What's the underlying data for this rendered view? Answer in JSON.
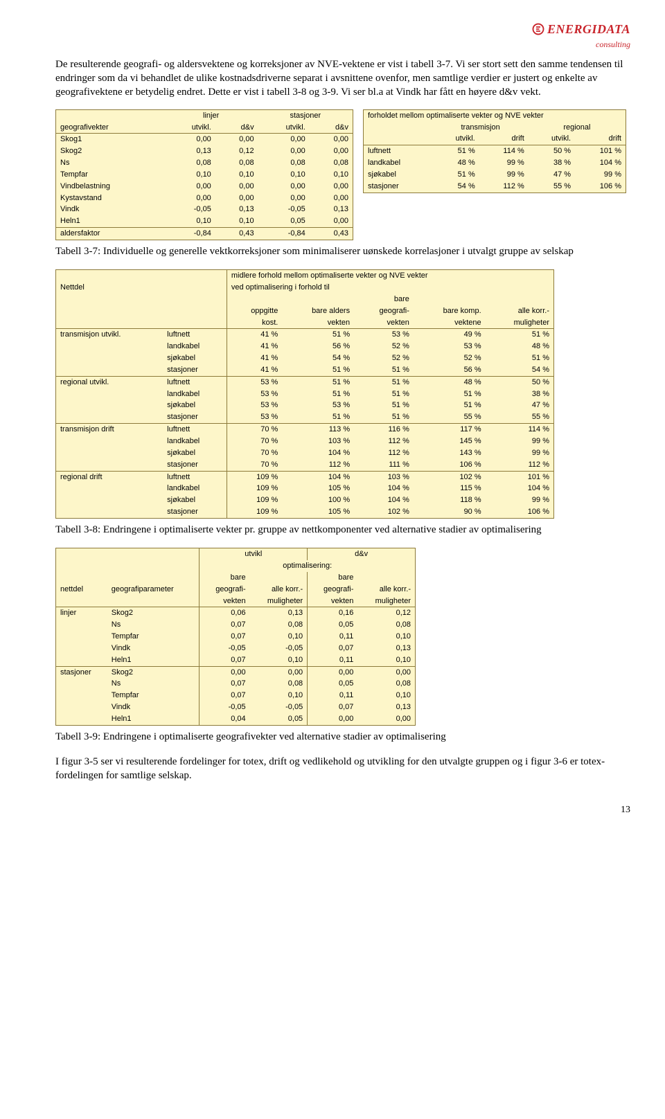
{
  "logo": {
    "name": "ENERGIDATA",
    "sub": "consulting"
  },
  "para1": "De resulterende geografi- og aldersvektene og korreksjoner av NVE-vektene er vist i tabell 3-7. Vi ser stort sett den samme tendensen til endringer som da vi behandlet de ulike kostnadsdriverne separat i avsnittene ovenfor, men samtlige verdier er justert og enkelte av geografivektene er betydelig endret. Dette er vist i tabell 3-8 og 3-9. Vi ser bl.a at Vindk har fått en høyere d&v vekt.",
  "caption37": "Tabell 3-7: Individuelle og generelle vektkorreksjoner som minimaliserer uønskede korrelasjoner i utvalgt gruppe av selskap",
  "caption38": "Tabell 3-8: Endringene i optimaliserte vekter pr. gruppe av nettkomponenter ved alternative stadier av optimalisering",
  "caption39": "Tabell 3-9: Endringene i optimaliserte geografivekter ved alternative stadier av optimalisering",
  "para2": "I figur 3-5 ser vi resulterende fordelinger for totex, drift og vedlikehold og utvikling for den utvalgte gruppen og i figur 3-6 er totex-fordelingen for samtlige selskap.",
  "pagenum": "13",
  "t37l": {
    "h_linjer": "linjer",
    "h_stasjoner": "stasjoner",
    "h_geo": "geografivekter",
    "h_utvikl": "utvikl.",
    "h_dv": "d&v",
    "rows": [
      [
        "Skog1",
        "0,00",
        "0,00",
        "0,00",
        "0,00"
      ],
      [
        "Skog2",
        "0,13",
        "0,12",
        "0,00",
        "0,00"
      ],
      [
        "Ns",
        "0,08",
        "0,08",
        "0,08",
        "0,08"
      ],
      [
        "Tempfar",
        "0,10",
        "0,10",
        "0,10",
        "0,10"
      ],
      [
        "Vindbelastning",
        "0,00",
        "0,00",
        "0,00",
        "0,00"
      ],
      [
        "Kystavstand",
        "0,00",
        "0,00",
        "0,00",
        "0,00"
      ],
      [
        "Vindk",
        "-0,05",
        "0,13",
        "-0,05",
        "0,13"
      ],
      [
        "Heln1",
        "0,10",
        "0,10",
        "0,05",
        "0,00"
      ]
    ],
    "alders_label": "aldersfaktor",
    "alders": [
      "-0,84",
      "0,43",
      "-0,84",
      "0,43"
    ]
  },
  "t37r": {
    "title": "forholdet mellom optimaliserte vekter og NVE vekter",
    "h_trans": "transmisjon",
    "h_reg": "regional",
    "h_utvikl": "utvikl.",
    "h_drift": "drift",
    "rows": [
      [
        "luftnett",
        "51 %",
        "114 %",
        "50 %",
        "101 %"
      ],
      [
        "landkabel",
        "48 %",
        "99 %",
        "38 %",
        "104 %"
      ],
      [
        "sjøkabel",
        "51 %",
        "99 %",
        "47 %",
        "99 %"
      ],
      [
        "stasjoner",
        "54 %",
        "112 %",
        "55 %",
        "106 %"
      ]
    ]
  },
  "t38": {
    "h_nettdel": "Nettdel",
    "h_mid1": "midlere forhold mellom optimaliserte vekter og NVE vekter",
    "h_mid2": "ved optimalisering i forhold til",
    "h_bare": "bare",
    "cols": [
      "oppgitte kost.",
      "bare alders vekten",
      "geografi- vekten",
      "bare komp. vektene",
      "alle korr.- muligheter"
    ],
    "col_top": [
      "oppgitte",
      "bare alders",
      "geografi-",
      "bare komp.",
      "alle korr.-"
    ],
    "col_bot": [
      "kost.",
      "vekten",
      "vekten",
      "vektene",
      "muligheter"
    ],
    "groups": [
      {
        "name": "transmisjon utvikl.",
        "rows": [
          [
            "luftnett",
            "41 %",
            "51 %",
            "53 %",
            "49 %",
            "51 %"
          ],
          [
            "landkabel",
            "41 %",
            "56 %",
            "52 %",
            "53 %",
            "48 %"
          ],
          [
            "sjøkabel",
            "41 %",
            "54 %",
            "52 %",
            "52 %",
            "51 %"
          ],
          [
            "stasjoner",
            "41 %",
            "51 %",
            "51 %",
            "56 %",
            "54 %"
          ]
        ]
      },
      {
        "name": "regional utvikl.",
        "rows": [
          [
            "luftnett",
            "53 %",
            "51 %",
            "51 %",
            "48 %",
            "50 %"
          ],
          [
            "landkabel",
            "53 %",
            "51 %",
            "51 %",
            "51 %",
            "38 %"
          ],
          [
            "sjøkabel",
            "53 %",
            "53 %",
            "51 %",
            "51 %",
            "47 %"
          ],
          [
            "stasjoner",
            "53 %",
            "51 %",
            "51 %",
            "55 %",
            "55 %"
          ]
        ]
      },
      {
        "name": "transmisjon drift",
        "rows": [
          [
            "luftnett",
            "70 %",
            "113 %",
            "116 %",
            "117 %",
            "114 %"
          ],
          [
            "landkabel",
            "70 %",
            "103 %",
            "112 %",
            "145 %",
            "99 %"
          ],
          [
            "sjøkabel",
            "70 %",
            "104 %",
            "112 %",
            "143 %",
            "99 %"
          ],
          [
            "stasjoner",
            "70 %",
            "112 %",
            "111 %",
            "106 %",
            "112 %"
          ]
        ]
      },
      {
        "name": "regional drift",
        "rows": [
          [
            "luftnett",
            "109 %",
            "104 %",
            "103 %",
            "102 %",
            "101 %"
          ],
          [
            "landkabel",
            "109 %",
            "105 %",
            "104 %",
            "115 %",
            "104 %"
          ],
          [
            "sjøkabel",
            "109 %",
            "100 %",
            "104 %",
            "118 %",
            "99 %"
          ],
          [
            "stasjoner",
            "109 %",
            "105 %",
            "102 %",
            "90 %",
            "106 %"
          ]
        ]
      }
    ]
  },
  "t39": {
    "h_utvikl": "utvikl",
    "h_dv": "d&v",
    "h_opt": "optimalisering:",
    "h_bare": "bare",
    "h_nettdel": "nettdel",
    "h_geoparam": "geografiparameter",
    "h_geo": "geografi-",
    "h_alle": "alle korr.-",
    "h_vekten": "vekten",
    "h_mul": "muligheter",
    "groups": [
      {
        "name": "linjer",
        "rows": [
          [
            "Skog2",
            "0,06",
            "0,13",
            "0,16",
            "0,12"
          ],
          [
            "Ns",
            "0,07",
            "0,08",
            "0,05",
            "0,08"
          ],
          [
            "Tempfar",
            "0,07",
            "0,10",
            "0,11",
            "0,10"
          ],
          [
            "Vindk",
            "-0,05",
            "-0,05",
            "0,07",
            "0,13"
          ],
          [
            "Heln1",
            "0,07",
            "0,10",
            "0,11",
            "0,10"
          ]
        ]
      },
      {
        "name": "stasjoner",
        "rows": [
          [
            "Skog2",
            "0,00",
            "0,00",
            "0,00",
            "0,00"
          ],
          [
            "Ns",
            "0,07",
            "0,08",
            "0,05",
            "0,08"
          ],
          [
            "Tempfar",
            "0,07",
            "0,10",
            "0,11",
            "0,10"
          ],
          [
            "Vindk",
            "-0,05",
            "-0,05",
            "0,07",
            "0,13"
          ],
          [
            "Heln1",
            "0,04",
            "0,05",
            "0,00",
            "0,00"
          ]
        ]
      }
    ]
  }
}
